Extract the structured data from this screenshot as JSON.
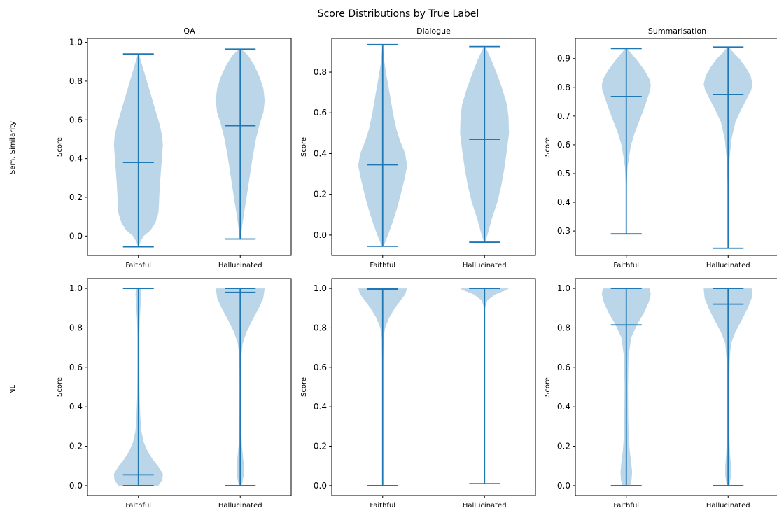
{
  "title": "Score Distributions by True Label",
  "row_labels": [
    "Sem. Similarity",
    "NLI"
  ],
  "colors": {
    "violin": "#1f77b4"
  },
  "chart_data": [
    {
      "type": "violin",
      "row": 0,
      "col": 0,
      "title": "QA",
      "ylabel": "Score",
      "categories": [
        "Faithful",
        "Hallucinated"
      ],
      "ylim": [
        -0.1,
        1.02
      ],
      "yticks": [
        0.0,
        0.2,
        0.4,
        0.6,
        0.8,
        1.0
      ],
      "tick_format": 1,
      "violins": [
        {
          "min": -0.055,
          "max": 0.94,
          "median": 0.38,
          "max_half_width": 0.24,
          "profile": [
            [
              -0.055,
              0.02
            ],
            [
              -0.03,
              0.08
            ],
            [
              0.0,
              0.22
            ],
            [
              0.03,
              0.5
            ],
            [
              0.07,
              0.7
            ],
            [
              0.12,
              0.82
            ],
            [
              0.16,
              0.84
            ],
            [
              0.22,
              0.86
            ],
            [
              0.3,
              0.9
            ],
            [
              0.4,
              0.96
            ],
            [
              0.47,
              1.0
            ],
            [
              0.52,
              0.97
            ],
            [
              0.58,
              0.86
            ],
            [
              0.64,
              0.72
            ],
            [
              0.7,
              0.58
            ],
            [
              0.76,
              0.44
            ],
            [
              0.82,
              0.3
            ],
            [
              0.88,
              0.16
            ],
            [
              0.94,
              0.02
            ]
          ]
        },
        {
          "min": -0.015,
          "max": 0.965,
          "median": 0.57,
          "max_half_width": 0.24,
          "profile": [
            [
              -0.015,
              0.02
            ],
            [
              0.05,
              0.08
            ],
            [
              0.12,
              0.16
            ],
            [
              0.2,
              0.26
            ],
            [
              0.3,
              0.38
            ],
            [
              0.4,
              0.5
            ],
            [
              0.5,
              0.64
            ],
            [
              0.58,
              0.8
            ],
            [
              0.64,
              0.95
            ],
            [
              0.7,
              1.0
            ],
            [
              0.76,
              0.95
            ],
            [
              0.82,
              0.8
            ],
            [
              0.88,
              0.58
            ],
            [
              0.93,
              0.34
            ],
            [
              0.965,
              0.05
            ]
          ]
        }
      ]
    },
    {
      "type": "violin",
      "row": 0,
      "col": 1,
      "title": "Dialogue",
      "ylabel": "Score",
      "categories": [
        "Faithful",
        "Hallucinated"
      ],
      "ylim": [
        -0.1,
        0.965
      ],
      "yticks": [
        0.0,
        0.2,
        0.4,
        0.6,
        0.8
      ],
      "tick_format": 1,
      "violins": [
        {
          "min": -0.055,
          "max": 0.935,
          "median": 0.345,
          "max_half_width": 0.24,
          "profile": [
            [
              -0.055,
              0.04
            ],
            [
              0.0,
              0.22
            ],
            [
              0.06,
              0.4
            ],
            [
              0.12,
              0.56
            ],
            [
              0.2,
              0.74
            ],
            [
              0.28,
              0.9
            ],
            [
              0.34,
              1.0
            ],
            [
              0.4,
              0.92
            ],
            [
              0.46,
              0.72
            ],
            [
              0.52,
              0.56
            ],
            [
              0.6,
              0.42
            ],
            [
              0.7,
              0.28
            ],
            [
              0.78,
              0.16
            ],
            [
              0.86,
              0.06
            ],
            [
              0.935,
              0.01
            ]
          ]
        },
        {
          "min": -0.035,
          "max": 0.925,
          "median": 0.47,
          "max_half_width": 0.24,
          "profile": [
            [
              -0.035,
              0.02
            ],
            [
              0.0,
              0.12
            ],
            [
              0.08,
              0.3
            ],
            [
              0.16,
              0.52
            ],
            [
              0.24,
              0.68
            ],
            [
              0.32,
              0.8
            ],
            [
              0.42,
              0.92
            ],
            [
              0.5,
              1.0
            ],
            [
              0.58,
              0.98
            ],
            [
              0.64,
              0.92
            ],
            [
              0.72,
              0.72
            ],
            [
              0.8,
              0.48
            ],
            [
              0.86,
              0.28
            ],
            [
              0.925,
              0.03
            ]
          ]
        }
      ]
    },
    {
      "type": "violin",
      "row": 0,
      "col": 2,
      "title": "Summarisation",
      "ylabel": "Score",
      "categories": [
        "Faithful",
        "Hallucinated"
      ],
      "ylim": [
        0.215,
        0.97
      ],
      "yticks": [
        0.3,
        0.4,
        0.5,
        0.6,
        0.7,
        0.8,
        0.9
      ],
      "tick_format": 1,
      "violins": [
        {
          "min": 0.29,
          "max": 0.935,
          "median": 0.768,
          "max_half_width": 0.24,
          "profile": [
            [
              0.29,
              0.0
            ],
            [
              0.45,
              0.015
            ],
            [
              0.52,
              0.05
            ],
            [
              0.56,
              0.12
            ],
            [
              0.6,
              0.2
            ],
            [
              0.64,
              0.34
            ],
            [
              0.68,
              0.52
            ],
            [
              0.72,
              0.7
            ],
            [
              0.76,
              0.86
            ],
            [
              0.79,
              0.98
            ],
            [
              0.81,
              1.0
            ],
            [
              0.83,
              0.94
            ],
            [
              0.86,
              0.74
            ],
            [
              0.89,
              0.48
            ],
            [
              0.915,
              0.24
            ],
            [
              0.935,
              0.04
            ]
          ]
        },
        {
          "min": 0.24,
          "max": 0.94,
          "median": 0.775,
          "max_half_width": 0.24,
          "profile": [
            [
              0.24,
              0.0
            ],
            [
              0.45,
              0.02
            ],
            [
              0.55,
              0.06
            ],
            [
              0.62,
              0.14
            ],
            [
              0.68,
              0.3
            ],
            [
              0.72,
              0.52
            ],
            [
              0.76,
              0.76
            ],
            [
              0.79,
              0.94
            ],
            [
              0.81,
              1.0
            ],
            [
              0.84,
              0.92
            ],
            [
              0.87,
              0.72
            ],
            [
              0.9,
              0.46
            ],
            [
              0.92,
              0.22
            ],
            [
              0.94,
              0.03
            ]
          ]
        }
      ]
    },
    {
      "type": "violin",
      "row": 1,
      "col": 0,
      "title": "",
      "ylabel": "Score",
      "categories": [
        "Faithful",
        "Hallucinated"
      ],
      "ylim": [
        -0.05,
        1.05
      ],
      "yticks": [
        0.0,
        0.2,
        0.4,
        0.6,
        0.8,
        1.0
      ],
      "tick_format": 1,
      "violins": [
        {
          "min": 0.0,
          "max": 1.0,
          "median": 0.055,
          "max_half_width": 0.24,
          "profile": [
            [
              0.0,
              0.82
            ],
            [
              0.03,
              0.98
            ],
            [
              0.06,
              1.0
            ],
            [
              0.1,
              0.8
            ],
            [
              0.14,
              0.55
            ],
            [
              0.18,
              0.36
            ],
            [
              0.22,
              0.22
            ],
            [
              0.28,
              0.12
            ],
            [
              0.35,
              0.08
            ],
            [
              0.45,
              0.05
            ],
            [
              0.6,
              0.04
            ],
            [
              0.75,
              0.04
            ],
            [
              0.85,
              0.06
            ],
            [
              0.93,
              0.1
            ],
            [
              0.97,
              0.12
            ],
            [
              1.0,
              0.1
            ]
          ]
        },
        {
          "min": 0.0,
          "max": 1.0,
          "median": 0.98,
          "max_half_width": 0.24,
          "profile": [
            [
              0.0,
              0.06
            ],
            [
              0.05,
              0.14
            ],
            [
              0.1,
              0.15
            ],
            [
              0.15,
              0.11
            ],
            [
              0.2,
              0.07
            ],
            [
              0.3,
              0.035
            ],
            [
              0.5,
              0.025
            ],
            [
              0.65,
              0.04
            ],
            [
              0.72,
              0.1
            ],
            [
              0.78,
              0.26
            ],
            [
              0.84,
              0.5
            ],
            [
              0.9,
              0.76
            ],
            [
              0.95,
              0.94
            ],
            [
              1.0,
              1.0
            ]
          ]
        }
      ]
    },
    {
      "type": "violin",
      "row": 1,
      "col": 1,
      "title": "",
      "ylabel": "Score",
      "categories": [
        "Faithful",
        "Hallucinated"
      ],
      "ylim": [
        -0.05,
        1.05
      ],
      "yticks": [
        0.0,
        0.2,
        0.4,
        0.6,
        0.8,
        1.0
      ],
      "tick_format": 1,
      "violins": [
        {
          "min": 0.0,
          "max": 1.0,
          "median": 0.995,
          "max_half_width": 0.24,
          "profile": [
            [
              0.0,
              0.02
            ],
            [
              0.3,
              0.015
            ],
            [
              0.6,
              0.02
            ],
            [
              0.75,
              0.04
            ],
            [
              0.8,
              0.1
            ],
            [
              0.85,
              0.26
            ],
            [
              0.9,
              0.5
            ],
            [
              0.94,
              0.74
            ],
            [
              0.97,
              0.92
            ],
            [
              1.0,
              1.0
            ]
          ]
        },
        {
          "min": 0.01,
          "max": 1.0,
          "median": 1.0,
          "max_half_width": 0.24,
          "profile": [
            [
              0.01,
              0.0
            ],
            [
              0.8,
              0.006
            ],
            [
              0.9,
              0.02
            ],
            [
              0.94,
              0.12
            ],
            [
              0.97,
              0.45
            ],
            [
              0.99,
              0.86
            ],
            [
              1.0,
              1.0
            ]
          ]
        }
      ]
    },
    {
      "type": "violin",
      "row": 1,
      "col": 2,
      "title": "",
      "ylabel": "Score",
      "categories": [
        "Faithful",
        "Hallucinated"
      ],
      "ylim": [
        -0.05,
        1.05
      ],
      "yticks": [
        0.0,
        0.2,
        0.4,
        0.6,
        0.8,
        1.0
      ],
      "tick_format": 1,
      "violins": [
        {
          "min": 0.0,
          "max": 1.0,
          "median": 0.815,
          "max_half_width": 0.24,
          "profile": [
            [
              0.0,
              0.16
            ],
            [
              0.03,
              0.22
            ],
            [
              0.07,
              0.24
            ],
            [
              0.12,
              0.2
            ],
            [
              0.18,
              0.14
            ],
            [
              0.25,
              0.1
            ],
            [
              0.35,
              0.08
            ],
            [
              0.5,
              0.07
            ],
            [
              0.65,
              0.09
            ],
            [
              0.75,
              0.2
            ],
            [
              0.82,
              0.46
            ],
            [
              0.88,
              0.74
            ],
            [
              0.93,
              0.92
            ],
            [
              0.97,
              1.0
            ],
            [
              1.0,
              0.96
            ]
          ]
        },
        {
          "min": 0.0,
          "max": 1.0,
          "median": 0.92,
          "max_half_width": 0.24,
          "profile": [
            [
              0.0,
              0.06
            ],
            [
              0.05,
              0.12
            ],
            [
              0.1,
              0.12
            ],
            [
              0.16,
              0.08
            ],
            [
              0.25,
              0.05
            ],
            [
              0.4,
              0.04
            ],
            [
              0.55,
              0.05
            ],
            [
              0.65,
              0.07
            ],
            [
              0.72,
              0.12
            ],
            [
              0.78,
              0.3
            ],
            [
              0.84,
              0.56
            ],
            [
              0.9,
              0.8
            ],
            [
              0.95,
              0.96
            ],
            [
              1.0,
              1.0
            ]
          ]
        }
      ]
    }
  ]
}
